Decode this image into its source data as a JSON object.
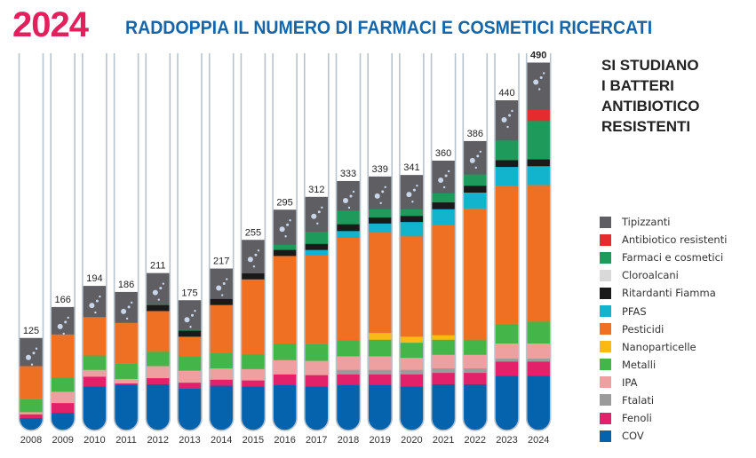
{
  "header": {
    "year": "2024",
    "title": "RADDOPPIA IL NUMERO DI FARMACI E COSMETICI RICERCATI"
  },
  "side_title": "SI STUDIANO\nI BATTERI\nANTIBIOTICO\nRESISTENTI",
  "chart_data": {
    "type": "bar",
    "stacked": true,
    "categories": [
      "2008",
      "2009",
      "2010",
      "2011",
      "2012",
      "2013",
      "2014",
      "2015",
      "2016",
      "2017",
      "2018",
      "2019",
      "2020",
      "2021",
      "2022",
      "2023",
      "2024"
    ],
    "totals": [
      125,
      166,
      194,
      186,
      211,
      175,
      217,
      255,
      295,
      312,
      333,
      339,
      341,
      360,
      386,
      440,
      490
    ],
    "series": [
      {
        "name": "COV",
        "color": "#0563ad",
        "values": [
          19,
          26,
          61,
          63,
          64,
          58,
          62,
          61,
          63,
          61,
          63,
          63,
          61,
          64,
          64,
          75,
          75
        ]
      },
      {
        "name": "Fenoli",
        "color": "#e3206a",
        "values": [
          5,
          13,
          13,
          2,
          8,
          8,
          8,
          8,
          14,
          15,
          14,
          14,
          16,
          15,
          15,
          19,
          19
        ]
      },
      {
        "name": "Ftalati",
        "color": "#9b9b9b",
        "values": [
          0,
          0,
          0,
          0,
          0,
          0,
          0,
          0,
          0,
          0,
          6,
          6,
          6,
          6,
          6,
          4,
          4
        ]
      },
      {
        "name": "IPA",
        "color": "#eea0a0",
        "values": [
          3,
          15,
          9,
          6,
          16,
          16,
          15,
          15,
          19,
          19,
          18,
          18,
          16,
          18,
          18,
          20,
          20
        ]
      },
      {
        "name": "Metalli",
        "color": "#44b549",
        "values": [
          17,
          19,
          19,
          20,
          19,
          19,
          20,
          20,
          22,
          22,
          21,
          22,
          20,
          20,
          20,
          26,
          29
        ]
      },
      {
        "name": "Nanoparticelle",
        "color": "#fdb913",
        "values": [
          0,
          0,
          0,
          0,
          0,
          0,
          0,
          0,
          0,
          0,
          0,
          9,
          8,
          6,
          0,
          0,
          0
        ]
      },
      {
        "name": "Pesticidi",
        "color": "#f07023",
        "values": [
          44,
          57,
          51,
          54,
          54,
          26,
          64,
          99,
          116,
          118,
          136,
          133,
          133,
          146,
          174,
          183,
          181
        ]
      },
      {
        "name": "PFAS",
        "color": "#11b4cc",
        "values": [
          0,
          0,
          0,
          0,
          0,
          0,
          0,
          0,
          0,
          7,
          9,
          12,
          19,
          21,
          21,
          25,
          25
        ]
      },
      {
        "name": "Ritardanti Fiamma",
        "color": "#1a1a1a",
        "values": [
          0,
          0,
          0,
          0,
          8,
          8,
          8,
          8,
          8,
          8,
          9,
          8,
          8,
          9,
          9,
          9,
          9
        ]
      },
      {
        "name": "Cloroalcani",
        "color": "#d9d9d9",
        "values": [
          0,
          0,
          0,
          0,
          0,
          0,
          0,
          0,
          0,
          0,
          0,
          0,
          0,
          0,
          0,
          0,
          0
        ]
      },
      {
        "name": "Farmaci e cosmetici",
        "color": "#1e9a5a",
        "values": [
          0,
          0,
          0,
          1,
          1,
          1,
          0,
          0,
          7,
          16,
          18,
          11,
          9,
          12,
          15,
          26,
          51
        ]
      },
      {
        "name": "Antibiotico resistenti",
        "color": "#e52b2e",
        "values": [
          0,
          0,
          0,
          0,
          0,
          0,
          0,
          0,
          0,
          0,
          0,
          0,
          0,
          0,
          0,
          0,
          15
        ]
      },
      {
        "name": "Tipizzanti",
        "color": "#5f5f63",
        "values": [
          37,
          36,
          41,
          40,
          41,
          39,
          40,
          44,
          46,
          46,
          39,
          43,
          45,
          43,
          44,
          53,
          62
        ]
      }
    ],
    "legend_order": [
      "Tipizzanti",
      "Antibiotico resistenti",
      "Farmaci e cosmetici",
      "Cloroalcani",
      "Ritardanti Fiamma",
      "PFAS",
      "Pesticidi",
      "Nanoparticelle",
      "Metalli",
      "IPA",
      "Ftalati",
      "Fenoli",
      "COV"
    ],
    "legend_placement": "right",
    "ylim": [
      0,
      500
    ],
    "grid": false
  }
}
